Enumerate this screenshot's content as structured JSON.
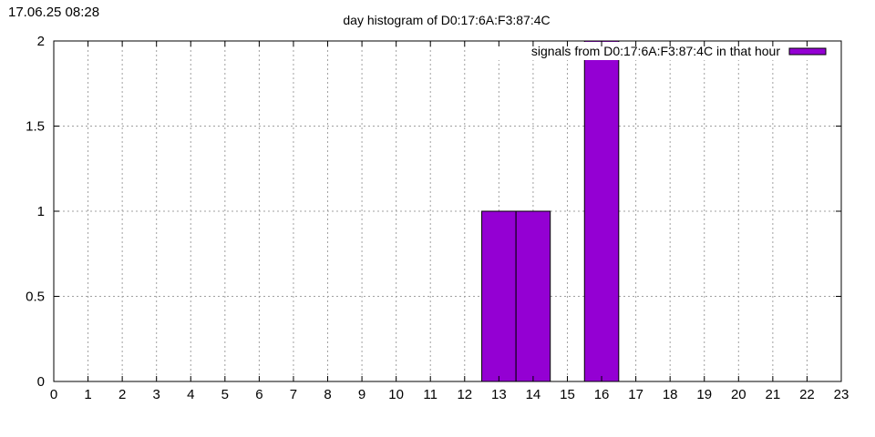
{
  "timestamp": "17.06.25 08:28",
  "chart_data": {
    "type": "bar",
    "title": "day histogram of D0:17:6A:F3:87:4C",
    "xlabel": "",
    "ylabel": "",
    "xlim": [
      0,
      23
    ],
    "ylim": [
      0,
      2
    ],
    "x_ticks": [
      "0",
      "1",
      "2",
      "3",
      "4",
      "5",
      "6",
      "7",
      "8",
      "9",
      "10",
      "11",
      "12",
      "13",
      "14",
      "15",
      "16",
      "17",
      "18",
      "19",
      "20",
      "21",
      "22",
      "23"
    ],
    "y_ticks": [
      "0",
      "0.5",
      "1",
      "1.5",
      "2"
    ],
    "grid": true,
    "legend": {
      "position": "top-right",
      "entries": [
        {
          "name": "signals from D0:17:6A:F3:87:4C in that hour",
          "color": "#9400d3"
        }
      ]
    },
    "series": [
      {
        "name": "signals from D0:17:6A:F3:87:4C in that hour",
        "color": "#9400d3",
        "bars": [
          {
            "x": 13,
            "value": 1
          },
          {
            "x": 14,
            "value": 1
          },
          {
            "x": 16,
            "value": 2
          }
        ]
      }
    ]
  }
}
